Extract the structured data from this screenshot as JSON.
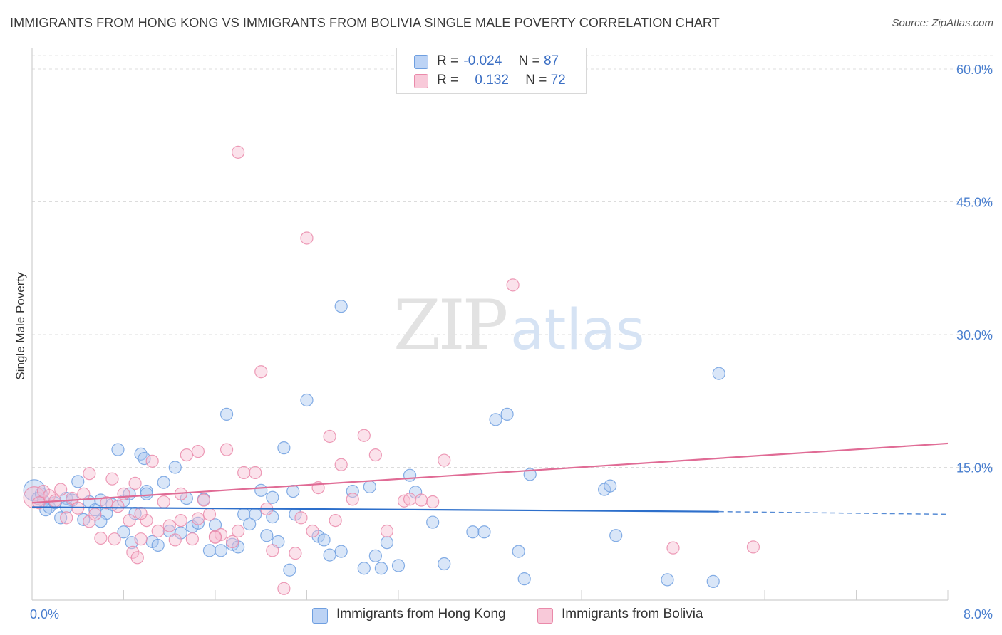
{
  "title": "IMMIGRANTS FROM HONG KONG VS IMMIGRANTS FROM BOLIVIA SINGLE MALE POVERTY CORRELATION CHART",
  "source": "Source: ZipAtlas.com",
  "watermark": {
    "zip": "ZIP",
    "atlas": "atlas"
  },
  "legend": {
    "rows": [
      {
        "r_label": "R =",
        "r_value": "-0.024",
        "n_label": "N =",
        "n_value": "87"
      },
      {
        "r_label": "R =",
        "r_value": "0.132",
        "n_label": "N =",
        "n_value": "72"
      }
    ]
  },
  "chart_data": {
    "type": "scatter",
    "title": "IMMIGRANTS FROM HONG KONG VS IMMIGRANTS FROM BOLIVIA SINGLE MALE POVERTY CORRELATION CHART",
    "xlabel": "",
    "ylabel": "Single Male Poverty",
    "xlim": [
      0,
      8
    ],
    "ylim": [
      0,
      60
    ],
    "x_tick_labels": [
      "0.0%",
      "8.0%"
    ],
    "y_ticks": [
      15,
      30,
      45,
      60
    ],
    "y_tick_labels": [
      "15.0%",
      "30.0%",
      "45.0%",
      "60.0%"
    ],
    "grid": "horizontal dashed",
    "legend_placement": "bottom-center",
    "series": [
      {
        "name": "Immigrants from Hong Kong",
        "color": "#6f9fe0",
        "fill": "#aac7f0",
        "line_color": "#2d6fcb",
        "trend": {
          "x0": 0.0,
          "y0": 10.5,
          "x1": 6.0,
          "y1": 10.0,
          "dash_to_x": 8.0,
          "dash_to_y": 9.7
        },
        "points": [
          [
            0.02,
            12.4
          ],
          [
            0.05,
            11.5
          ],
          [
            0.08,
            12.0
          ],
          [
            0.1,
            11.2
          ],
          [
            0.12,
            10.2
          ],
          [
            0.15,
            10.5
          ],
          [
            0.2,
            11.0
          ],
          [
            0.25,
            9.3
          ],
          [
            0.3,
            11.5
          ],
          [
            0.35,
            11.3
          ],
          [
            0.4,
            13.4
          ],
          [
            0.45,
            9.1
          ],
          [
            0.5,
            11.1
          ],
          [
            0.55,
            10.2
          ],
          [
            0.6,
            11.3
          ],
          [
            0.65,
            9.8
          ],
          [
            0.7,
            10.8
          ],
          [
            0.75,
            17.0
          ],
          [
            0.8,
            7.7
          ],
          [
            0.8,
            11.2
          ],
          [
            0.85,
            12.0
          ],
          [
            0.87,
            6.5
          ],
          [
            0.9,
            9.8
          ],
          [
            0.95,
            16.5
          ],
          [
            0.98,
            16.0
          ],
          [
            1.0,
            12.3
          ],
          [
            1.05,
            6.6
          ],
          [
            1.1,
            6.2
          ],
          [
            1.15,
            13.3
          ],
          [
            1.2,
            7.8
          ],
          [
            1.25,
            15.0
          ],
          [
            1.3,
            7.6
          ],
          [
            1.35,
            11.5
          ],
          [
            1.4,
            8.3
          ],
          [
            1.45,
            8.7
          ],
          [
            1.5,
            11.4
          ],
          [
            1.55,
            5.6
          ],
          [
            1.6,
            8.5
          ],
          [
            1.65,
            5.6
          ],
          [
            1.7,
            21.0
          ],
          [
            1.75,
            6.3
          ],
          [
            1.8,
            6.0
          ],
          [
            1.85,
            9.7
          ],
          [
            1.9,
            8.6
          ],
          [
            1.95,
            9.7
          ],
          [
            2.0,
            12.4
          ],
          [
            2.05,
            7.3
          ],
          [
            2.1,
            11.6
          ],
          [
            2.15,
            6.6
          ],
          [
            2.2,
            17.2
          ],
          [
            2.25,
            3.4
          ],
          [
            2.28,
            12.3
          ],
          [
            2.3,
            9.7
          ],
          [
            2.4,
            22.6
          ],
          [
            2.5,
            7.2
          ],
          [
            2.55,
            6.8
          ],
          [
            2.6,
            5.1
          ],
          [
            2.7,
            5.5
          ],
          [
            2.8,
            12.3
          ],
          [
            2.9,
            3.6
          ],
          [
            2.95,
            12.8
          ],
          [
            3.0,
            5.0
          ],
          [
            3.05,
            3.6
          ],
          [
            3.1,
            6.5
          ],
          [
            3.2,
            3.9
          ],
          [
            3.3,
            14.1
          ],
          [
            3.35,
            12.2
          ],
          [
            3.5,
            8.8
          ],
          [
            3.6,
            4.1
          ],
          [
            3.85,
            7.7
          ],
          [
            3.95,
            7.7
          ],
          [
            4.05,
            20.4
          ],
          [
            4.15,
            21.0
          ],
          [
            4.25,
            5.5
          ],
          [
            4.3,
            2.4
          ],
          [
            4.35,
            14.2
          ],
          [
            5.0,
            12.5
          ],
          [
            5.05,
            12.9
          ],
          [
            5.1,
            7.3
          ],
          [
            5.55,
            2.3
          ],
          [
            5.95,
            2.1
          ],
          [
            6.0,
            25.6
          ],
          [
            2.7,
            33.2
          ],
          [
            0.3,
            10.5
          ],
          [
            0.6,
            8.9
          ],
          [
            1.0,
            12.0
          ],
          [
            2.1,
            9.4
          ]
        ]
      },
      {
        "name": "Immigrants from Bolivia",
        "color": "#ea8aaa",
        "fill": "#f6bed2",
        "line_color": "#e06b95",
        "trend": {
          "x0": 0.0,
          "y0": 11.0,
          "x1": 8.0,
          "y1": 17.7
        },
        "points": [
          [
            0.02,
            11.6
          ],
          [
            0.06,
            11.0
          ],
          [
            0.1,
            12.3
          ],
          [
            0.15,
            11.8
          ],
          [
            0.2,
            11.2
          ],
          [
            0.25,
            12.5
          ],
          [
            0.3,
            9.3
          ],
          [
            0.35,
            11.5
          ],
          [
            0.4,
            10.4
          ],
          [
            0.45,
            12.0
          ],
          [
            0.5,
            8.9
          ],
          [
            0.5,
            14.3
          ],
          [
            0.55,
            9.7
          ],
          [
            0.6,
            7.0
          ],
          [
            0.65,
            11.0
          ],
          [
            0.7,
            13.7
          ],
          [
            0.72,
            6.9
          ],
          [
            0.75,
            10.6
          ],
          [
            0.8,
            12.0
          ],
          [
            0.85,
            9.0
          ],
          [
            0.88,
            5.4
          ],
          [
            0.9,
            13.2
          ],
          [
            0.92,
            4.8
          ],
          [
            0.95,
            6.9
          ],
          [
            1.0,
            9.0
          ],
          [
            1.05,
            15.7
          ],
          [
            1.1,
            7.8
          ],
          [
            1.15,
            11.1
          ],
          [
            1.2,
            8.4
          ],
          [
            1.25,
            6.8
          ],
          [
            1.3,
            9.0
          ],
          [
            1.35,
            16.4
          ],
          [
            1.4,
            6.9
          ],
          [
            1.45,
            16.8
          ],
          [
            1.5,
            11.3
          ],
          [
            1.55,
            9.7
          ],
          [
            1.6,
            7.2
          ],
          [
            1.65,
            7.4
          ],
          [
            1.7,
            17.0
          ],
          [
            1.75,
            6.6
          ],
          [
            1.8,
            7.8
          ],
          [
            1.85,
            14.4
          ],
          [
            1.95,
            14.4
          ],
          [
            2.0,
            25.8
          ],
          [
            2.05,
            10.3
          ],
          [
            2.1,
            5.6
          ],
          [
            2.2,
            1.3
          ],
          [
            2.3,
            5.3
          ],
          [
            2.35,
            9.3
          ],
          [
            2.4,
            40.9
          ],
          [
            2.5,
            12.7
          ],
          [
            2.6,
            18.5
          ],
          [
            2.65,
            9.0
          ],
          [
            2.7,
            15.3
          ],
          [
            2.8,
            11.4
          ],
          [
            2.9,
            18.6
          ],
          [
            3.0,
            16.4
          ],
          [
            3.1,
            7.8
          ],
          [
            3.25,
            11.2
          ],
          [
            3.3,
            11.4
          ],
          [
            3.4,
            11.3
          ],
          [
            3.6,
            15.8
          ],
          [
            4.2,
            35.6
          ],
          [
            5.6,
            5.9
          ],
          [
            6.3,
            6.0
          ],
          [
            1.8,
            50.6
          ],
          [
            1.3,
            12.0
          ],
          [
            0.95,
            9.8
          ],
          [
            1.45,
            9.2
          ],
          [
            1.6,
            7.1
          ],
          [
            2.45,
            7.8
          ],
          [
            3.5,
            11.1
          ]
        ]
      }
    ]
  },
  "axis": {
    "x_min_label": "0.0%",
    "x_max_label": "8.0%",
    "y_label": "Single Male Poverty"
  },
  "bottom_legend": [
    {
      "label": "Immigrants from Hong Kong"
    },
    {
      "label": "Immigrants from Bolivia"
    }
  ]
}
